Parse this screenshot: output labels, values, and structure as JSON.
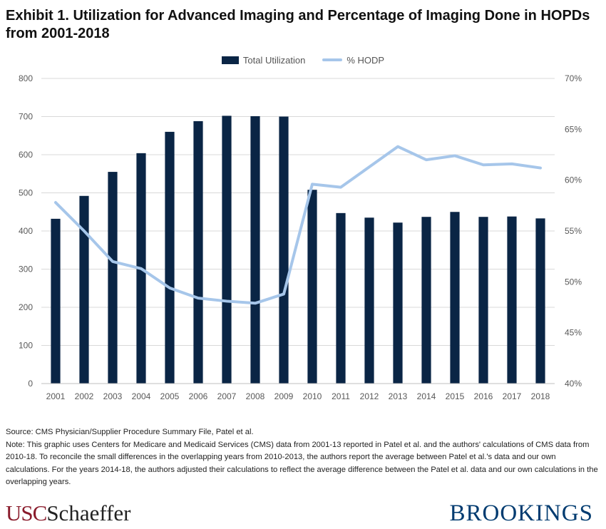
{
  "title": "Exhibit 1. Utilization for Advanced Imaging and Percentage of Imaging Done in HOPDs from 2001-2018",
  "legend": {
    "bar_label": "Total Utilization",
    "line_label": "% HODP"
  },
  "colors": {
    "bar": "#0a2545",
    "line": "#a6c6ea",
    "axis_text": "#595959",
    "grid": "#d9d9d9"
  },
  "chart_data": {
    "type": "bar",
    "categories": [
      "2001",
      "2002",
      "2003",
      "2004",
      "2005",
      "2006",
      "2007",
      "2008",
      "2009",
      "2010",
      "2011",
      "2012",
      "2013",
      "2014",
      "2015",
      "2016",
      "2017",
      "2018"
    ],
    "series": [
      {
        "name": "Total Utilization",
        "type": "bar",
        "axis": "left",
        "values": [
          432,
          492,
          555,
          604,
          660,
          688,
          702,
          701,
          700,
          508,
          447,
          435,
          422,
          437,
          450,
          437,
          438,
          433
        ]
      },
      {
        "name": "% HODP",
        "type": "line",
        "axis": "right",
        "values": [
          57.8,
          55.0,
          52.0,
          51.3,
          49.4,
          48.4,
          48.1,
          47.9,
          48.8,
          59.6,
          59.3,
          61.3,
          63.3,
          62.0,
          62.4,
          61.5,
          61.6,
          61.2
        ]
      }
    ],
    "y_left": {
      "min": 0,
      "max": 800,
      "ticks": [
        "0",
        "100",
        "200",
        "300",
        "400",
        "500",
        "600",
        "700",
        "800"
      ]
    },
    "y_right": {
      "min": 40,
      "max": 70,
      "ticks": [
        "40%",
        "45%",
        "50%",
        "55%",
        "60%",
        "65%",
        "70%"
      ]
    },
    "grid": true,
    "legend_position": "top-center"
  },
  "notes": {
    "source": "Source: CMS Physician/Supplier Procedure Summary File, Patel et al.",
    "note": "Note: This graphic uses Centers for Medicare and Medicaid Services (CMS) data from 2001-13 reported in Patel et al. and the authors' calculations of CMS data from 2010-18. To reconcile the small differences in the overlapping years from 2010-2013, the authors report the average between Patel et al.'s data and our own calculations. For the years 2014-18, the authors adjusted their calculations to reflect the average difference between the Patel et al. data and our own calculations in the overlapping years."
  },
  "logos": {
    "usc_part1": "USC",
    "usc_part2": "Schaeffer",
    "brookings": "BROOKINGS"
  }
}
